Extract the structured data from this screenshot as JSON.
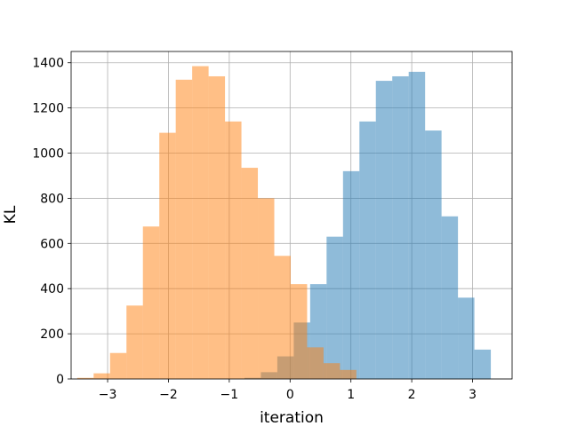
{
  "chart_data": {
    "type": "bar",
    "title": "",
    "xlabel": "iteration",
    "ylabel": "KL",
    "xlim": [
      -3.6,
      3.65
    ],
    "ylim": [
      0,
      1450
    ],
    "xticks": [
      -3,
      -2,
      -1,
      0,
      1,
      2,
      3
    ],
    "xtick_labels": [
      "−3",
      "−2",
      "−1",
      "0",
      "1",
      "2",
      "3"
    ],
    "yticks": [
      0,
      200,
      400,
      600,
      800,
      1000,
      1200,
      1400
    ],
    "ytick_labels": [
      "0",
      "200",
      "400",
      "600",
      "800",
      "1000",
      "1200",
      "1400"
    ],
    "grid": true,
    "legend": "none",
    "series": [
      {
        "color": "#1f77b4",
        "opacity": 0.5,
        "bin_edges": [
          -0.75,
          -0.48,
          -0.21,
          0.06,
          0.33,
          0.6,
          0.87,
          1.14,
          1.41,
          1.68,
          1.95,
          2.22,
          2.49,
          2.76,
          3.03,
          3.3
        ],
        "counts": [
          5,
          30,
          100,
          250,
          420,
          630,
          920,
          1140,
          1320,
          1340,
          1360,
          1100,
          720,
          360,
          130,
          30
        ]
      },
      {
        "color": "#ff7f0e",
        "opacity": 0.5,
        "bin_edges": [
          -3.5,
          -3.23,
          -2.96,
          -2.69,
          -2.42,
          -2.15,
          -1.88,
          -1.61,
          -1.34,
          -1.07,
          -0.8,
          -0.53,
          -0.26,
          0.01,
          0.28,
          0.55,
          0.82,
          1.09
        ],
        "counts": [
          5,
          25,
          115,
          325,
          675,
          1090,
          1325,
          1385,
          1340,
          1140,
          935,
          800,
          545,
          420,
          140,
          70,
          40,
          15
        ]
      }
    ]
  }
}
